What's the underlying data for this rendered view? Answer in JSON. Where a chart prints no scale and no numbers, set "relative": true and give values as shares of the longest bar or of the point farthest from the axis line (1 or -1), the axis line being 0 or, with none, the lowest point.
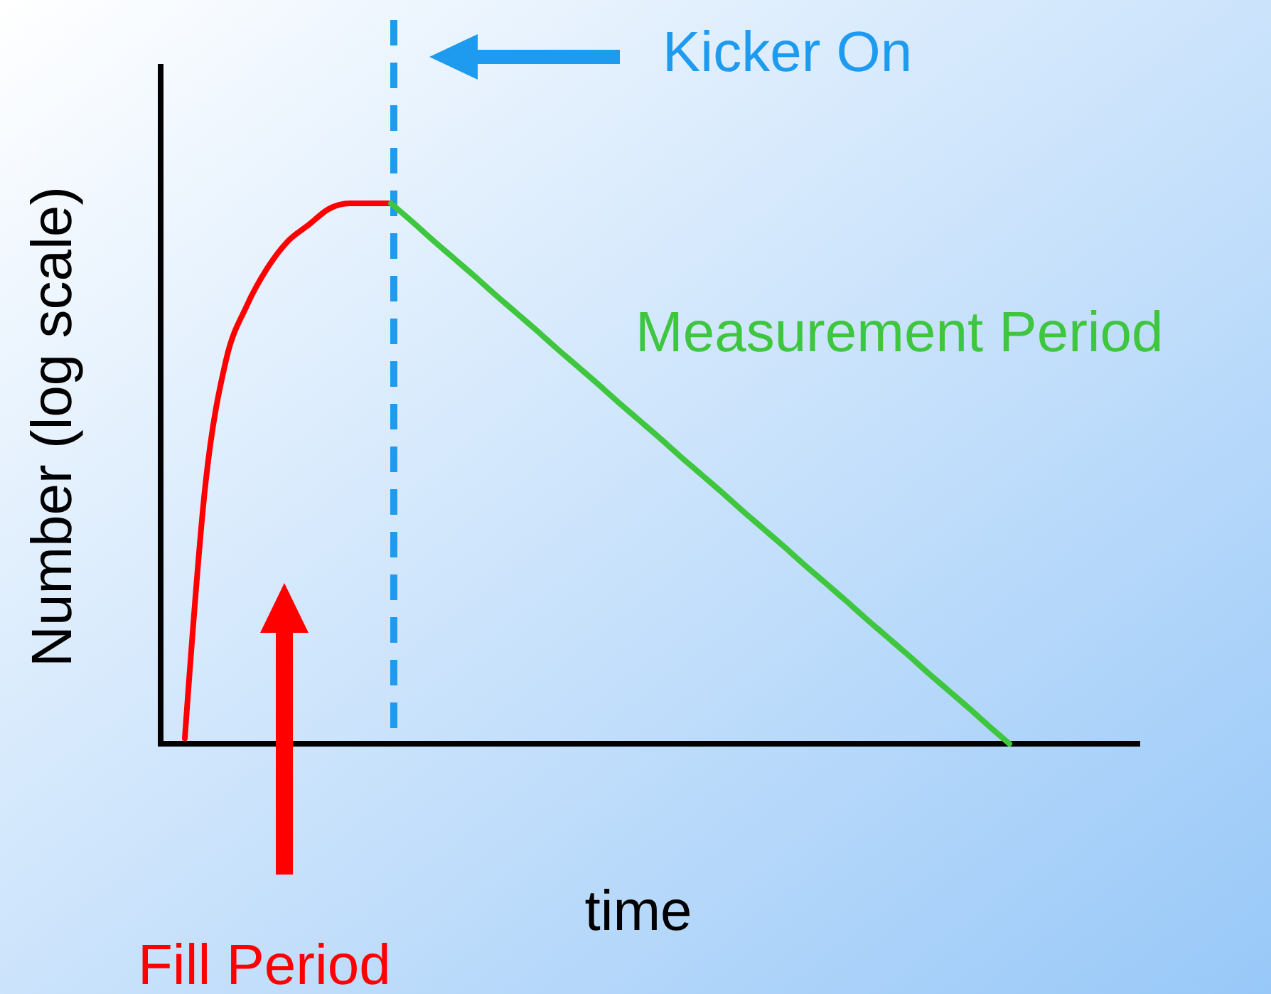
{
  "chart_data": {
    "type": "line",
    "relative": true,
    "xlabel": "time",
    "ylabel": "Number (log scale)",
    "marker": "none",
    "grid": false,
    "categories": [
      null,
      null,
      null,
      null,
      null,
      null,
      null,
      null,
      null,
      null,
      null,
      null,
      null,
      null,
      null,
      null,
      null,
      null,
      null,
      null,
      null,
      null,
      null,
      null,
      null,
      null,
      null,
      null,
      null,
      null,
      null,
      null,
      null,
      null,
      null,
      null,
      null,
      null,
      null,
      null,
      null,
      null,
      null,
      null,
      null,
      null,
      null
    ],
    "series": [
      {
        "color": "#ff0000",
        "line_style": "solid",
        "values": [
          0.01,
          0.48,
          0.71,
          0.81,
          0.88,
          0.93,
          0.96,
          0.99,
          1,
          1,
          1,
          null,
          null,
          null,
          null,
          null,
          null,
          null,
          null,
          null,
          null,
          null,
          null,
          null,
          null,
          null,
          null,
          null,
          null,
          null,
          null,
          null,
          null,
          null,
          null,
          null,
          null,
          null,
          null,
          null,
          null,
          null,
          null,
          null,
          null,
          null,
          null
        ]
      },
      {
        "color": "#3ec63e",
        "line_style": "solid",
        "values": [
          null,
          null,
          null,
          null,
          null,
          null,
          null,
          null,
          null,
          null,
          1,
          0.967,
          0.933,
          0.9,
          0.867,
          0.833,
          0.8,
          0.767,
          0.733,
          0.7,
          0.667,
          0.633,
          0.6,
          0.567,
          0.533,
          0.5,
          0.467,
          0.433,
          0.4,
          0.367,
          0.333,
          0.3,
          0.267,
          0.233,
          0.2,
          0.167,
          0.133,
          0.1,
          0.067,
          0.033,
          0,
          null,
          null,
          null,
          null,
          null,
          null
        ]
      }
    ],
    "annotations": [
      "Kicker On",
      "Measurement Period",
      "Fill Period"
    ]
  }
}
